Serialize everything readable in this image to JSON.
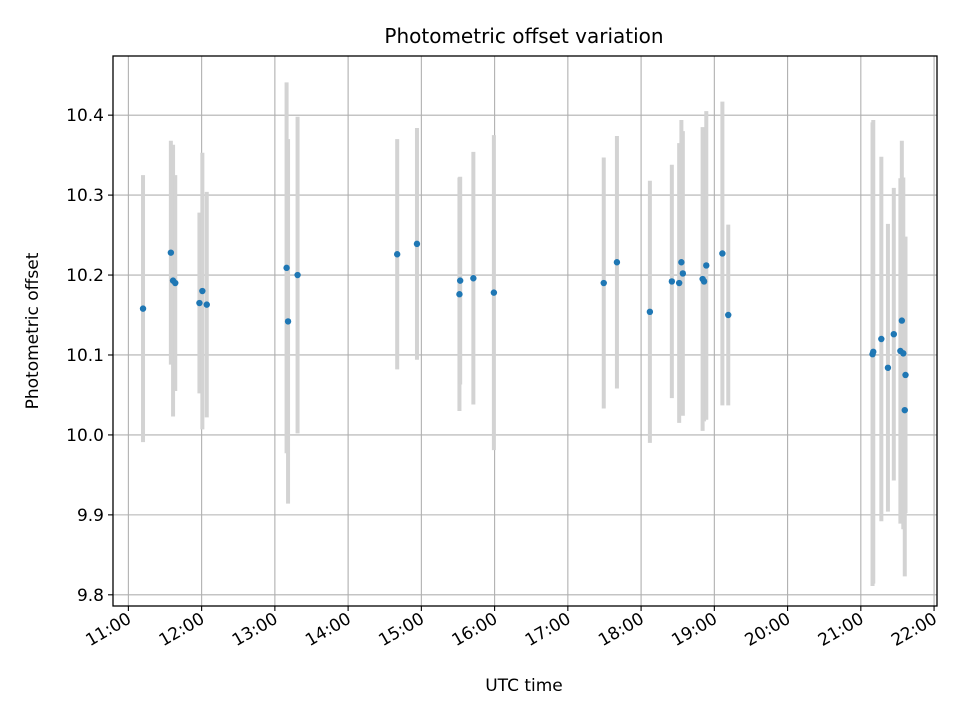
{
  "chart_data": {
    "type": "scatter",
    "title": "Photometric offset variation",
    "xlabel": "UTC time",
    "ylabel": "Photometric offset",
    "x_unit": "hours UTC",
    "xlim": [
      10.79,
      22.04
    ],
    "ylim": [
      9.786,
      10.474
    ],
    "grid": true,
    "xticks": [
      {
        "value": 11,
        "label": "11:00"
      },
      {
        "value": 12,
        "label": "12:00"
      },
      {
        "value": 13,
        "label": "13:00"
      },
      {
        "value": 14,
        "label": "14:00"
      },
      {
        "value": 15,
        "label": "15:00"
      },
      {
        "value": 16,
        "label": "16:00"
      },
      {
        "value": 17,
        "label": "17:00"
      },
      {
        "value": 18,
        "label": "18:00"
      },
      {
        "value": 19,
        "label": "19:00"
      },
      {
        "value": 20,
        "label": "20:00"
      },
      {
        "value": 21,
        "label": "21:00"
      },
      {
        "value": 22,
        "label": "22:00"
      }
    ],
    "yticks": [
      {
        "value": 9.8,
        "label": "9.8"
      },
      {
        "value": 9.9,
        "label": "9.9"
      },
      {
        "value": 10.0,
        "label": "10.0"
      },
      {
        "value": 10.1,
        "label": "10.1"
      },
      {
        "value": 10.2,
        "label": "10.2"
      },
      {
        "value": 10.3,
        "label": "10.3"
      },
      {
        "value": 10.4,
        "label": "10.4"
      }
    ],
    "colors": {
      "point": "#1f77b4",
      "errorbar": "#d3d3d3"
    },
    "points": [
      {
        "x": 11.2,
        "y": 10.158,
        "err": 0.167
      },
      {
        "x": 11.58,
        "y": 10.228,
        "err": 0.14
      },
      {
        "x": 11.61,
        "y": 10.193,
        "err": 0.17
      },
      {
        "x": 11.64,
        "y": 10.19,
        "err": 0.135
      },
      {
        "x": 11.97,
        "y": 10.165,
        "err": 0.113
      },
      {
        "x": 12.01,
        "y": 10.18,
        "err": 0.173
      },
      {
        "x": 12.07,
        "y": 10.163,
        "err": 0.141
      },
      {
        "x": 13.16,
        "y": 10.209,
        "err": 0.232
      },
      {
        "x": 13.18,
        "y": 10.142,
        "err": 0.228
      },
      {
        "x": 13.31,
        "y": 10.2,
        "err": 0.198
      },
      {
        "x": 14.67,
        "y": 10.226,
        "err": 0.144
      },
      {
        "x": 14.94,
        "y": 10.239,
        "err": 0.145
      },
      {
        "x": 15.52,
        "y": 10.176,
        "err": 0.146
      },
      {
        "x": 15.53,
        "y": 10.193,
        "err": 0.13
      },
      {
        "x": 15.71,
        "y": 10.196,
        "err": 0.158
      },
      {
        "x": 15.99,
        "y": 10.178,
        "err": 0.197
      },
      {
        "x": 17.49,
        "y": 10.19,
        "err": 0.157
      },
      {
        "x": 17.67,
        "y": 10.216,
        "err": 0.158
      },
      {
        "x": 18.12,
        "y": 10.154,
        "err": 0.164
      },
      {
        "x": 18.42,
        "y": 10.192,
        "err": 0.146
      },
      {
        "x": 18.52,
        "y": 10.19,
        "err": 0.175
      },
      {
        "x": 18.55,
        "y": 10.216,
        "err": 0.178
      },
      {
        "x": 18.57,
        "y": 10.202,
        "err": 0.178
      },
      {
        "x": 18.84,
        "y": 10.195,
        "err": 0.19
      },
      {
        "x": 18.86,
        "y": 10.192,
        "err": 0.175
      },
      {
        "x": 18.89,
        "y": 10.212,
        "err": 0.193
      },
      {
        "x": 19.11,
        "y": 10.227,
        "err": 0.19
      },
      {
        "x": 19.19,
        "y": 10.15,
        "err": 0.113
      },
      {
        "x": 21.16,
        "y": 10.101,
        "err": 0.29
      },
      {
        "x": 21.17,
        "y": 10.104,
        "err": 0.29
      },
      {
        "x": 21.28,
        "y": 10.12,
        "err": 0.228
      },
      {
        "x": 21.37,
        "y": 10.084,
        "err": 0.18
      },
      {
        "x": 21.45,
        "y": 10.126,
        "err": 0.183
      },
      {
        "x": 21.54,
        "y": 10.105,
        "err": 0.216
      },
      {
        "x": 21.56,
        "y": 10.143,
        "err": 0.225
      },
      {
        "x": 21.58,
        "y": 10.102,
        "err": 0.22
      },
      {
        "x": 21.6,
        "y": 10.031,
        "err": 0.208
      },
      {
        "x": 21.61,
        "y": 10.075,
        "err": 0.173
      }
    ]
  }
}
